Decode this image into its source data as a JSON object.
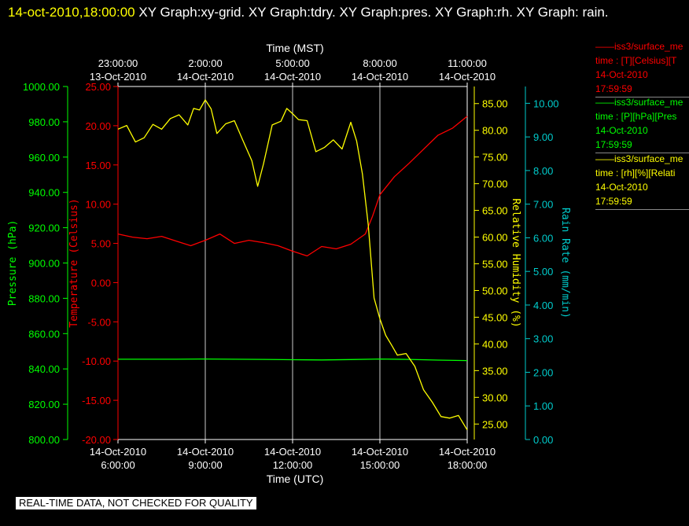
{
  "header": {
    "timestamp": "14-oct-2010,18:00:00",
    "graphs": "XY Graph:xy-grid.  XY Graph:tdry.  XY Graph:pres.  XY Graph:rh.  XY Graph: rain."
  },
  "footer": {
    "notice": "REAL-TIME DATA, NOT CHECKED FOR QUALITY"
  },
  "legend": [
    {
      "line1": "iss3/surface_me",
      "line2": "time : [T][Celsius][T",
      "line3": "14-Oct-2010",
      "line4": "17:59:59",
      "color": "#ff0000"
    },
    {
      "line1": "iss3/surface_me",
      "line2": "time : [P][hPa][Pres",
      "line3": "14-Oct-2010",
      "line4": "17:59:59",
      "color": "#00ff00"
    },
    {
      "line1": "iss3/surface_me",
      "line2": "time : [rh][%][Relati",
      "line3": "14-Oct-2010",
      "line4": "17:59:59",
      "color": "#ffff00"
    }
  ],
  "chart_data": {
    "type": "line",
    "colors": {
      "temperature": "#ff0000",
      "pressure": "#00ff00",
      "humidity": "#ffff00",
      "rain": "#00cccc",
      "grid": "#ffffff",
      "text": "#ffffff"
    },
    "x_bottom": {
      "label": "Time (UTC)",
      "range_hours": [
        6,
        18
      ],
      "ticks": [
        {
          "hour": 6,
          "date": "14-Oct-2010",
          "time": "6:00:00"
        },
        {
          "hour": 9,
          "date": "14-Oct-2010",
          "time": "9:00:00"
        },
        {
          "hour": 12,
          "date": "14-Oct-2010",
          "time": "12:00:00"
        },
        {
          "hour": 15,
          "date": "14-Oct-2010",
          "time": "15:00:00"
        },
        {
          "hour": 18,
          "date": "14-Oct-2010",
          "time": "18:00:00"
        }
      ]
    },
    "x_top": {
      "label": "Time (MST)",
      "ticks": [
        {
          "hour": 6,
          "date": "13-Oct-2010",
          "time": "23:00:00"
        },
        {
          "hour": 9,
          "date": "14-Oct-2010",
          "time": "2:00:00"
        },
        {
          "hour": 12,
          "date": "14-Oct-2010",
          "time": "5:00:00"
        },
        {
          "hour": 15,
          "date": "14-Oct-2010",
          "time": "8:00:00"
        },
        {
          "hour": 18,
          "date": "14-Oct-2010",
          "time": "11:00:00"
        }
      ]
    },
    "axes": {
      "pressure": {
        "label": "Pressure (hPa)",
        "range": [
          800,
          1000
        ],
        "ticks": [
          "800.00",
          "820.00",
          "840.00",
          "860.00",
          "880.00",
          "900.00",
          "920.00",
          "940.00",
          "960.00",
          "980.00",
          "1000.00"
        ]
      },
      "temperature": {
        "label": "Temperature (Celsius)",
        "range": [
          -20,
          25
        ],
        "ticks": [
          "-20.00",
          "-15.00",
          "-10.00",
          "-5.00",
          "0.00",
          "5.00",
          "10.00",
          "15.00",
          "20.00",
          "25.00"
        ]
      },
      "humidity": {
        "label": "Relative Humidity (%)",
        "range": [
          22.1,
          88.2
        ],
        "ticks": [
          "25.00",
          "30.00",
          "35.00",
          "40.00",
          "45.00",
          "50.00",
          "55.00",
          "60.00",
          "65.00",
          "70.00",
          "75.00",
          "80.00",
          "85.00"
        ]
      },
      "rain": {
        "label": "Rain Rate (mm/min)",
        "range": [
          0,
          10.5
        ],
        "ticks": [
          "0.00",
          "1.00",
          "2.00",
          "3.00",
          "4.00",
          "5.00",
          "6.00",
          "7.00",
          "8.00",
          "9.00",
          "10.00"
        ]
      }
    },
    "series": [
      {
        "name": "Temperature",
        "axis": "temperature",
        "x": [
          6,
          6.5,
          7,
          7.5,
          8,
          8.5,
          9,
          9.5,
          10,
          10.5,
          11,
          11.5,
          12,
          12.5,
          13,
          13.5,
          14,
          14.5,
          14.75,
          15,
          15.5,
          16,
          16.5,
          17,
          17.5,
          18
        ],
        "y": [
          6.2,
          5.8,
          5.6,
          5.9,
          5.3,
          4.7,
          5.4,
          6.2,
          5.0,
          5.4,
          5.1,
          4.7,
          4.0,
          3.4,
          4.6,
          4.3,
          4.9,
          6.2,
          8.5,
          11.2,
          13.5,
          15.2,
          17.0,
          18.8,
          19.7,
          21.2
        ]
      },
      {
        "name": "Pressure",
        "axis": "pressure",
        "x": [
          6,
          7,
          8,
          9,
          10,
          11,
          12,
          13,
          14,
          15,
          16,
          17,
          18
        ],
        "y": [
          845.5,
          845.5,
          845.5,
          845.6,
          845.5,
          845.4,
          845.2,
          845.1,
          845.3,
          845.6,
          845.4,
          845.0,
          844.7
        ]
      },
      {
        "name": "Relative Humidity",
        "axis": "humidity",
        "x": [
          6,
          6.3,
          6.6,
          6.9,
          7.2,
          7.5,
          7.8,
          8.1,
          8.4,
          8.6,
          8.8,
          9.0,
          9.2,
          9.4,
          9.7,
          10.0,
          10.3,
          10.6,
          10.8,
          11.0,
          11.3,
          11.6,
          11.8,
          12.0,
          12.2,
          12.5,
          12.8,
          13.1,
          13.4,
          13.7,
          14.0,
          14.2,
          14.4,
          14.6,
          14.8,
          15.0,
          15.2,
          15.4,
          15.6,
          15.9,
          16.2,
          16.5,
          16.8,
          17.1,
          17.4,
          17.7,
          18.0
        ],
        "y": [
          80.2,
          80.9,
          77.8,
          78.6,
          81.1,
          80.2,
          82.2,
          82.9,
          81.0,
          84.1,
          83.8,
          85.7,
          84.0,
          79.4,
          81.2,
          81.8,
          78.0,
          74.3,
          69.5,
          73.7,
          81.0,
          81.7,
          84.1,
          83.1,
          82.0,
          81.8,
          76.0,
          76.8,
          78.2,
          76.5,
          81.5,
          78.0,
          71.8,
          62.3,
          48.6,
          44.7,
          41.6,
          39.8,
          37.9,
          38.2,
          35.8,
          31.4,
          29.1,
          26.4,
          26.1,
          26.6,
          23.9
        ]
      }
    ]
  }
}
